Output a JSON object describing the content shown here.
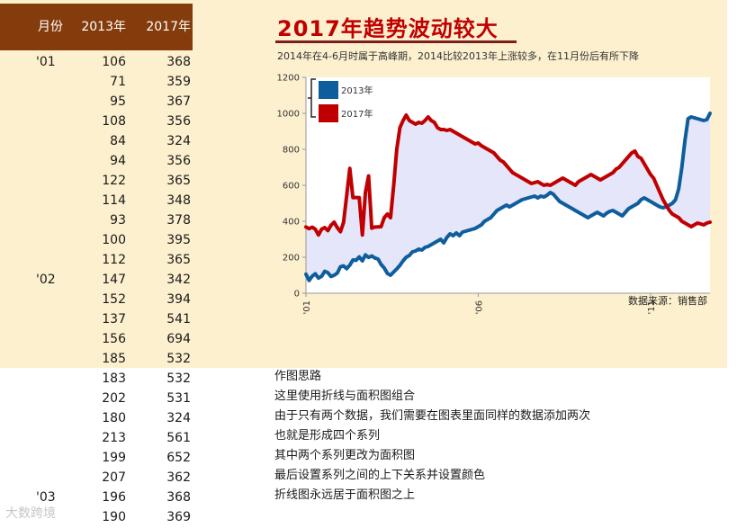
{
  "table": {
    "headers": [
      "月份",
      "2013年",
      "2017年"
    ],
    "rows": [
      [
        "'01",
        "106",
        "368"
      ],
      [
        "",
        "71",
        "359"
      ],
      [
        "",
        "95",
        "367"
      ],
      [
        "",
        "108",
        "356"
      ],
      [
        "",
        "84",
        "324"
      ],
      [
        "",
        "94",
        "356"
      ],
      [
        "",
        "122",
        "365"
      ],
      [
        "",
        "114",
        "348"
      ],
      [
        "",
        "93",
        "378"
      ],
      [
        "",
        "100",
        "395"
      ],
      [
        "",
        "112",
        "365"
      ],
      [
        "'02",
        "147",
        "342"
      ],
      [
        "",
        "152",
        "394"
      ],
      [
        "",
        "137",
        "541"
      ],
      [
        "",
        "156",
        "694"
      ],
      [
        "",
        "185",
        "532"
      ],
      [
        "",
        "183",
        "532"
      ],
      [
        "",
        "202",
        "531"
      ],
      [
        "",
        "180",
        "324"
      ],
      [
        "",
        "213",
        "561"
      ],
      [
        "",
        "199",
        "652"
      ],
      [
        "",
        "207",
        "362"
      ],
      [
        "'03",
        "196",
        "368"
      ],
      [
        "",
        "190",
        "369"
      ]
    ]
  },
  "chart_title": "2017年趋势波动较大",
  "chart_subtitle": "2014年在4-6月时属于高峰期，2014比较2013年上涨较多，在11月份后有所下降",
  "source": "数据来源：销售部",
  "notes": [
    "作图思路",
    "这里使用折线与面积图组合",
    "由于只有两个数据，我们需要在图表里面同样的数据添加两次",
    "也就是形成四个系列",
    "其中两个系列更改为面积图",
    "最后设置系列之间的上下关系并设置颜色",
    "折线图永远居于面积图之上"
  ],
  "watermark": "大数跨境",
  "colors": {
    "header_bg": "#843c0c",
    "panel_bg": "#fdf0cf",
    "series_2013": "#0e5e9e",
    "series_2017": "#c00000",
    "area_fill": "#e6e6fa",
    "title": "#c00000"
  },
  "chart_data": {
    "type": "line",
    "title": "2017年趋势波动较大",
    "subtitle": "2014年在4-6月时属于高峰期，2014比较2013年上涨较多，在11月份后有所下降",
    "ylim": [
      0,
      1200
    ],
    "yticks": [
      "0",
      "200",
      "400",
      "600",
      "800",
      "1000",
      "1200"
    ],
    "xticks": [
      {
        "label": "'01",
        "index": 0
      },
      {
        "label": "'06",
        "index": 55
      },
      {
        "label": "'11",
        "index": 110
      }
    ],
    "legend": {
      "placement": "top-left",
      "entries": [
        "2013年",
        "2017年"
      ]
    },
    "grid": false,
    "area_between_series": true,
    "series": [
      {
        "name": "2013年",
        "color": "#0e5e9e",
        "values": [
          106,
          71,
          95,
          108,
          84,
          94,
          122,
          114,
          93,
          100,
          112,
          147,
          152,
          137,
          156,
          185,
          183,
          202,
          180,
          213,
          199,
          207,
          196,
          190,
          160,
          140,
          110,
          100,
          118,
          135,
          155,
          180,
          200,
          210,
          230,
          235,
          245,
          240,
          255,
          260,
          270,
          280,
          290,
          300,
          280,
          310,
          330,
          320,
          335,
          320,
          340,
          345,
          350,
          355,
          360,
          370,
          380,
          400,
          410,
          420,
          440,
          460,
          470,
          480,
          490,
          480,
          490,
          500,
          510,
          520,
          525,
          530,
          535,
          540,
          530,
          540,
          535,
          545,
          560,
          550,
          530,
          510,
          500,
          490,
          480,
          470,
          460,
          450,
          440,
          430,
          420,
          430,
          440,
          450,
          440,
          430,
          445,
          455,
          460,
          450,
          440,
          430,
          450,
          470,
          480,
          490,
          500,
          520,
          530,
          520,
          510,
          500,
          490,
          480,
          475,
          480,
          490,
          500,
          520,
          580,
          700,
          850,
          970,
          980,
          975,
          970,
          965,
          960,
          965,
          1000
        ]
      },
      {
        "name": "2017年",
        "color": "#c00000",
        "values": [
          368,
          359,
          367,
          356,
          324,
          356,
          365,
          348,
          378,
          395,
          365,
          342,
          394,
          541,
          694,
          532,
          532,
          531,
          324,
          561,
          652,
          362,
          368,
          369,
          370,
          420,
          440,
          420,
          600,
          800,
          920,
          960,
          990,
          960,
          950,
          940,
          950,
          945,
          960,
          980,
          960,
          950,
          920,
          910,
          910,
          905,
          910,
          900,
          890,
          880,
          870,
          860,
          850,
          840,
          830,
          835,
          820,
          810,
          800,
          790,
          780,
          760,
          740,
          730,
          710,
          690,
          670,
          660,
          650,
          640,
          630,
          620,
          610,
          615,
          620,
          610,
          600,
          605,
          600,
          610,
          620,
          630,
          640,
          630,
          620,
          610,
          600,
          620,
          630,
          640,
          650,
          660,
          650,
          640,
          630,
          640,
          650,
          660,
          670,
          690,
          700,
          720,
          740,
          760,
          780,
          790,
          760,
          750,
          720,
          690,
          660,
          640,
          600,
          560,
          520,
          490,
          460,
          440,
          430,
          420,
          400,
          390,
          380,
          370,
          380,
          390,
          385,
          380,
          390,
          395
        ]
      }
    ]
  }
}
